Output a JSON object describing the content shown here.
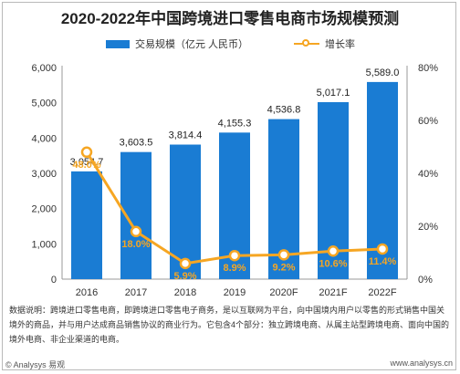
{
  "title": "2020-2022年中国跨境进口零售电商市场规模预测",
  "legend": {
    "bar_label": "交易规模（亿元 人民币）",
    "line_label": "增长率"
  },
  "chart_data": {
    "type": "bar",
    "categories": [
      "2016",
      "2017",
      "2018",
      "2019",
      "2020F",
      "2021F",
      "2022F"
    ],
    "series": [
      {
        "name": "交易规模（亿元 人民币）",
        "type": "bar",
        "axis": "left",
        "values": [
          3054.7,
          3603.5,
          3814.4,
          4155.3,
          4536.8,
          5017.1,
          5589.0
        ],
        "labels": [
          "3,054.7",
          "3,603.5",
          "3,814.4",
          "4,155.3",
          "4,536.8",
          "5,017.1",
          "5,589.0"
        ]
      },
      {
        "name": "增长率",
        "type": "line",
        "axis": "right",
        "values": [
          48.0,
          18.0,
          5.9,
          8.9,
          9.2,
          10.6,
          11.4
        ],
        "labels": [
          "48.0%",
          "18.0%",
          "5.9%",
          "8.9%",
          "9.2%",
          "10.6%",
          "11.4%"
        ]
      }
    ],
    "y_left": {
      "min": 0,
      "max": 6000,
      "ticks": [
        "0",
        "1,000",
        "2,000",
        "3,000",
        "4,000",
        "5,000",
        "6,000"
      ]
    },
    "y_right": {
      "min": 0,
      "max": 80,
      "ticks": [
        "0%",
        "20%",
        "40%",
        "60%",
        "80%"
      ]
    },
    "colors": {
      "bar": "#1a7cd3",
      "line": "#f6a623",
      "line_label": "#f6a623"
    },
    "legend_position": "top"
  },
  "note": "数据说明：跨境进口零售电商，即跨境进口零售电子商务，是以互联网为平台，向中国境内用户以零售的形式销售中国关境外的商品，并与用户达成商品销售协议的商业行为。它包含4个部分：独立跨境电商、从属主站型跨境电商、面向中国的境外电商、非企业渠道的电商。",
  "footer": {
    "left": "© Analysys 易观",
    "right": "www.analysys.cn"
  }
}
